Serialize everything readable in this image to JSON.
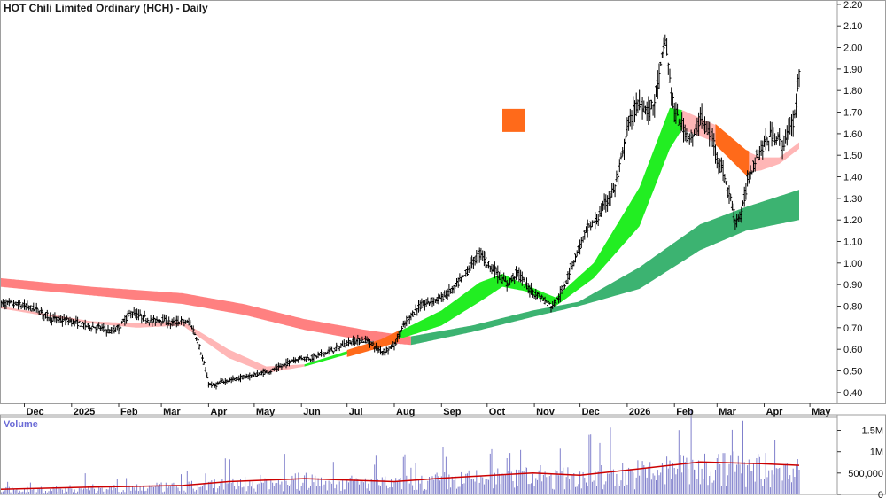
{
  "chart_data": {
    "type": "candlestick",
    "title": "HOT Chili Limited Ordinary (HCH) - Daily",
    "price_axis": {
      "ylim": [
        0.35,
        2.22
      ],
      "ticks": [
        "0.40",
        "0.50",
        "0.60",
        "0.70",
        "0.80",
        "0.90",
        "1.00",
        "1.10",
        "1.20",
        "1.30",
        "1.40",
        "1.50",
        "1.60",
        "1.70",
        "1.80",
        "1.90",
        "2.00",
        "2.10",
        "2.20"
      ]
    },
    "months": [
      {
        "label": "Dec",
        "day": 16
      },
      {
        "label": "2025",
        "day": 47
      },
      {
        "label": "Feb",
        "day": 78
      },
      {
        "label": "Mar",
        "day": 106
      },
      {
        "label": "Apr",
        "day": 137
      },
      {
        "label": "May",
        "day": 167
      },
      {
        "label": "Jun",
        "day": 198
      },
      {
        "label": "Jul",
        "day": 228
      },
      {
        "label": "Aug",
        "day": 259
      },
      {
        "label": "Sep",
        "day": 290
      },
      {
        "label": "Oct",
        "day": 320
      },
      {
        "label": "Nov",
        "day": 351
      },
      {
        "label": "Dec",
        "day": 381
      },
      {
        "label": "2026",
        "day": 412
      },
      {
        "label": "Feb",
        "day": 443
      },
      {
        "label": "Mar",
        "day": 471
      },
      {
        "label": "Apr",
        "day": 502
      },
      {
        "label": "May",
        "day": 532
      }
    ],
    "days_range": [
      0,
      550
    ],
    "price_path": [
      [
        0,
        0.81
      ],
      [
        8,
        0.81
      ],
      [
        16,
        0.8
      ],
      [
        25,
        0.78
      ],
      [
        35,
        0.74
      ],
      [
        47,
        0.73
      ],
      [
        56,
        0.71
      ],
      [
        66,
        0.7
      ],
      [
        73,
        0.68
      ],
      [
        78,
        0.7
      ],
      [
        86,
        0.77
      ],
      [
        93,
        0.75
      ],
      [
        100,
        0.73
      ],
      [
        106,
        0.74
      ],
      [
        112,
        0.72
      ],
      [
        119,
        0.73
      ],
      [
        125,
        0.72
      ],
      [
        130,
        0.64
      ],
      [
        134,
        0.53
      ],
      [
        137,
        0.44
      ],
      [
        141,
        0.43
      ],
      [
        146,
        0.45
      ],
      [
        153,
        0.46
      ],
      [
        160,
        0.47
      ],
      [
        167,
        0.48
      ],
      [
        172,
        0.49
      ],
      [
        178,
        0.5
      ],
      [
        185,
        0.52
      ],
      [
        192,
        0.55
      ],
      [
        198,
        0.56
      ],
      [
        205,
        0.56
      ],
      [
        212,
        0.58
      ],
      [
        220,
        0.6
      ],
      [
        228,
        0.63
      ],
      [
        235,
        0.64
      ],
      [
        242,
        0.64
      ],
      [
        248,
        0.6
      ],
      [
        252,
        0.59
      ],
      [
        259,
        0.62
      ],
      [
        263,
        0.68
      ],
      [
        268,
        0.74
      ],
      [
        274,
        0.79
      ],
      [
        282,
        0.82
      ],
      [
        290,
        0.84
      ],
      [
        298,
        0.88
      ],
      [
        305,
        0.94
      ],
      [
        310,
        1.0
      ],
      [
        316,
        1.05
      ],
      [
        320,
        1.0
      ],
      [
        326,
        0.96
      ],
      [
        333,
        0.9
      ],
      [
        340,
        0.96
      ],
      [
        345,
        0.9
      ],
      [
        351,
        0.86
      ],
      [
        356,
        0.84
      ],
      [
        362,
        0.8
      ],
      [
        366,
        0.83
      ],
      [
        370,
        0.88
      ],
      [
        375,
        0.98
      ],
      [
        381,
        1.08
      ],
      [
        386,
        1.16
      ],
      [
        392,
        1.2
      ],
      [
        398,
        1.28
      ],
      [
        404,
        1.35
      ],
      [
        409,
        1.5
      ],
      [
        412,
        1.62
      ],
      [
        416,
        1.7
      ],
      [
        421,
        1.75
      ],
      [
        426,
        1.7
      ],
      [
        430,
        1.75
      ],
      [
        434,
        1.9
      ],
      [
        437,
        2.04
      ],
      [
        440,
        1.85
      ],
      [
        443,
        1.7
      ],
      [
        447,
        1.65
      ],
      [
        451,
        1.6
      ],
      [
        456,
        1.58
      ],
      [
        460,
        1.68
      ],
      [
        464,
        1.62
      ],
      [
        468,
        1.58
      ],
      [
        471,
        1.5
      ],
      [
        475,
        1.42
      ],
      [
        479,
        1.32
      ],
      [
        483,
        1.2
      ],
      [
        487,
        1.22
      ],
      [
        491,
        1.38
      ],
      [
        496,
        1.48
      ],
      [
        502,
        1.55
      ],
      [
        508,
        1.6
      ],
      [
        514,
        1.55
      ],
      [
        519,
        1.62
      ],
      [
        522,
        1.68
      ],
      [
        525,
        1.88
      ]
    ],
    "bands": [
      {
        "name": "",
        "color": "#ff8080",
        "color_up": "#ff8080",
        "upper": [
          [
            0,
            0.93
          ],
          [
            60,
            0.89
          ],
          [
            120,
            0.86
          ],
          [
            160,
            0.81
          ],
          [
            200,
            0.74
          ],
          [
            240,
            0.69
          ],
          [
            270,
            0.66
          ]
        ],
        "lower": [
          [
            0,
            0.89
          ],
          [
            60,
            0.85
          ],
          [
            120,
            0.81
          ],
          [
            160,
            0.76
          ],
          [
            200,
            0.69
          ],
          [
            240,
            0.64
          ],
          [
            270,
            0.62
          ]
        ]
      },
      {
        "name": "",
        "color": "#3cb371",
        "upper": [
          [
            270,
            0.66
          ],
          [
            310,
            0.71
          ],
          [
            350,
            0.78
          ],
          [
            380,
            0.82
          ],
          [
            420,
            0.98
          ],
          [
            460,
            1.18
          ],
          [
            490,
            1.26
          ],
          [
            525,
            1.34
          ]
        ],
        "lower": [
          [
            270,
            0.62
          ],
          [
            310,
            0.68
          ],
          [
            350,
            0.75
          ],
          [
            380,
            0.8
          ],
          [
            420,
            0.88
          ],
          [
            460,
            1.06
          ],
          [
            490,
            1.15
          ],
          [
            525,
            1.2
          ]
        ]
      },
      {
        "name": "",
        "color": "#ffb6b6",
        "upper": [
          [
            0,
            0.8
          ],
          [
            60,
            0.73
          ],
          [
            90,
            0.72
          ],
          [
            120,
            0.73
          ],
          [
            150,
            0.6
          ],
          [
            175,
            0.52
          ],
          [
            200,
            0.53
          ]
        ],
        "lower": [
          [
            0,
            0.79
          ],
          [
            60,
            0.72
          ],
          [
            90,
            0.7
          ],
          [
            120,
            0.71
          ],
          [
            150,
            0.56
          ],
          [
            175,
            0.49
          ],
          [
            200,
            0.52
          ]
        ]
      },
      {
        "name": "",
        "color": "#22ee22",
        "upper": [
          [
            200,
            0.53
          ],
          [
            250,
            0.64
          ],
          [
            290,
            0.78
          ],
          [
            315,
            0.91
          ],
          [
            330,
            0.95
          ],
          [
            345,
            0.9
          ],
          [
            365,
            0.84
          ],
          [
            390,
            1.0
          ],
          [
            420,
            1.35
          ],
          [
            440,
            1.72
          ],
          [
            448,
            1.71
          ]
        ],
        "lower": [
          [
            200,
            0.52
          ],
          [
            250,
            0.62
          ],
          [
            290,
            0.71
          ],
          [
            315,
            0.82
          ],
          [
            330,
            0.89
          ],
          [
            345,
            0.87
          ],
          [
            365,
            0.8
          ],
          [
            390,
            0.93
          ],
          [
            420,
            1.17
          ],
          [
            440,
            1.53
          ],
          [
            448,
            1.62
          ]
        ]
      },
      {
        "name": "",
        "color": "#ffb6b6",
        "upper": [
          [
            448,
            1.71
          ],
          [
            470,
            1.64
          ],
          [
            490,
            1.52
          ],
          [
            500,
            1.49
          ],
          [
            512,
            1.49
          ],
          [
            525,
            1.56
          ]
        ],
        "lower": [
          [
            448,
            1.62
          ],
          [
            470,
            1.56
          ],
          [
            490,
            1.42
          ],
          [
            500,
            1.43
          ],
          [
            512,
            1.46
          ],
          [
            525,
            1.53
          ]
        ]
      }
    ],
    "volume_axis": {
      "ticks": [
        "0",
        "500,000",
        "1M",
        "1.5M"
      ],
      "max": 1800000
    },
    "volume_label": "Volume",
    "volume_ma": [
      [
        0,
        120000
      ],
      [
        60,
        170000
      ],
      [
        120,
        210000
      ],
      [
        150,
        300000
      ],
      [
        200,
        370000
      ],
      [
        259,
        300000
      ],
      [
        290,
        380000
      ],
      [
        350,
        500000
      ],
      [
        381,
        450000
      ],
      [
        420,
        600000
      ],
      [
        460,
        760000
      ],
      [
        500,
        720000
      ],
      [
        525,
        680000
      ]
    ],
    "colors": {
      "candle": "#000000",
      "volume_bar": "#8080cc",
      "volume_ma": "#cc0000",
      "grid_border": "#9e9e9e",
      "cross_orange": "#ff6a1a",
      "background": "#ffffff"
    }
  }
}
